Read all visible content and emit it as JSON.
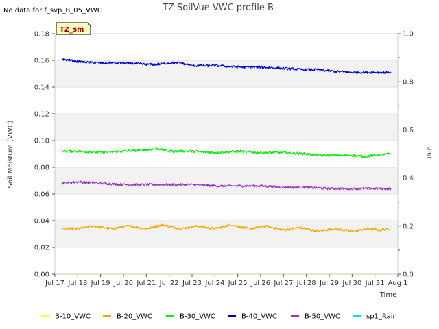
{
  "note": "No data for f_svp_B_05_VWC",
  "badge": "TZ_sm",
  "chart_data": {
    "type": "line",
    "title": "TZ SoilVue VWC profile B",
    "xlabel": "Time",
    "ylabel": "Soil Moisture (VWC)",
    "y2label": "Rain",
    "x_ticks": [
      "Jul 17",
      "Jul 18",
      "Jul 19",
      "Jul 20",
      "Jul 21",
      "Jul 22",
      "Jul 23",
      "Jul 24",
      "Jul 25",
      "Jul 26",
      "Jul 27",
      "Jul 28",
      "Jul 29",
      "Jul 30",
      "Jul 31",
      "Aug 1"
    ],
    "x_start": "Jul 17",
    "x_end": "Aug 1",
    "ylim": [
      0,
      0.18
    ],
    "y_ticks": [
      "0.00",
      "0.02",
      "0.04",
      "0.06",
      "0.08",
      "0.10",
      "0.12",
      "0.14",
      "0.16",
      "0.18"
    ],
    "y2lim": [
      0,
      1.0
    ],
    "y2_ticks": [
      "0.0",
      "0.2",
      "0.4",
      "0.6",
      "0.8",
      "1.0"
    ],
    "grid": "horizontal bands",
    "legend_position": "bottom",
    "series": [
      {
        "name": "B-10_VWC",
        "color": "#ffff33",
        "axis": "left",
        "x": [
          0.3,
          14.7
        ],
        "y": [
          0.0,
          0.0
        ]
      },
      {
        "name": "B-20_VWC",
        "color": "#ffa500",
        "axis": "left",
        "x": [
          0.3,
          1.0,
          1.7,
          2.5,
          3.2,
          4.0,
          4.7,
          5.5,
          6.2,
          7.0,
          7.7,
          8.5,
          9.2,
          10.0,
          10.7,
          11.5,
          12.2,
          13.0,
          13.7,
          14.2,
          14.7
        ],
        "y": [
          0.034,
          0.034,
          0.036,
          0.034,
          0.036,
          0.034,
          0.037,
          0.034,
          0.036,
          0.034,
          0.037,
          0.034,
          0.036,
          0.033,
          0.035,
          0.032,
          0.034,
          0.032,
          0.034,
          0.033,
          0.034
        ]
      },
      {
        "name": "B-30_VWC",
        "color": "#00ee00",
        "axis": "left",
        "x": [
          0.3,
          1.0,
          2.0,
          3.0,
          4.0,
          4.5,
          5.0,
          6.0,
          7.0,
          8.0,
          9.0,
          10.0,
          11.0,
          11.5,
          12.0,
          13.0,
          13.5,
          14.0,
          14.7
        ],
        "y": [
          0.092,
          0.092,
          0.091,
          0.092,
          0.093,
          0.094,
          0.092,
          0.092,
          0.091,
          0.092,
          0.091,
          0.091,
          0.09,
          0.089,
          0.089,
          0.089,
          0.088,
          0.089,
          0.09
        ]
      },
      {
        "name": "B-40_VWC",
        "color": "#0000cc",
        "axis": "left",
        "x": [
          0.3,
          1.0,
          2.0,
          3.0,
          4.0,
          4.5,
          5.0,
          5.5,
          6.0,
          7.0,
          8.0,
          9.0,
          10.0,
          11.0,
          11.5,
          12.0,
          13.0,
          13.5,
          14.0,
          14.7
        ],
        "y": [
          0.161,
          0.159,
          0.158,
          0.158,
          0.157,
          0.157,
          0.158,
          0.158,
          0.156,
          0.156,
          0.155,
          0.155,
          0.154,
          0.153,
          0.153,
          0.152,
          0.151,
          0.151,
          0.151,
          0.151
        ]
      },
      {
        "name": "B-50_VWC",
        "color": "#9a32cd",
        "axis": "left",
        "x": [
          0.3,
          1.0,
          2.0,
          3.0,
          4.0,
          5.0,
          6.0,
          7.0,
          8.0,
          9.0,
          10.0,
          11.0,
          12.0,
          13.0,
          14.0,
          14.7
        ],
        "y": [
          0.068,
          0.069,
          0.068,
          0.067,
          0.067,
          0.067,
          0.067,
          0.066,
          0.066,
          0.066,
          0.065,
          0.065,
          0.064,
          0.064,
          0.064,
          0.064
        ]
      },
      {
        "name": "sp1_Rain",
        "color": "#00e5ee",
        "axis": "right",
        "x": [],
        "y": []
      }
    ]
  }
}
